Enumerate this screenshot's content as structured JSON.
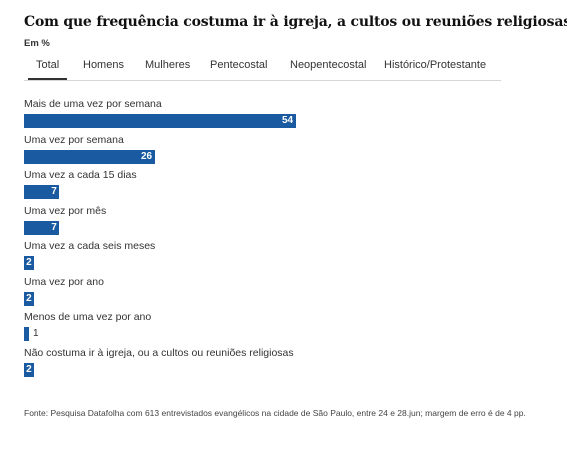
{
  "title": "Com que frequência costuma ir à igreja, a cultos ou reuniões religiosas",
  "subtitle": "Em %",
  "tabs": [
    "Total",
    "Homens",
    "Mulheres",
    "Pentecostal",
    "Neopentecostal",
    "Histórico/Protestante"
  ],
  "active_tab": "Total",
  "colors": {
    "bar": "#1a5aa0"
  },
  "chart_data": {
    "type": "bar",
    "orientation": "horizontal",
    "categories": [
      "Mais de uma vez por semana",
      "Uma vez por semana",
      "Uma vez a cada 15 dias",
      "Uma vez por mês",
      "Uma vez a cada seis meses",
      "Uma vez por ano",
      "Menos de uma vez por ano",
      "Não costuma ir à igreja, ou a cultos ou reuniões religiosas"
    ],
    "values": [
      54,
      26,
      7,
      7,
      2,
      2,
      1,
      2
    ],
    "xlim": [
      0,
      100
    ],
    "grid": false,
    "legend": "none"
  },
  "source": "Fonte: Pesquisa Datafolha com 613 entrevistados evangélicos na cidade de São Paulo, entre 24 e 28.jun; margem de erro é de 4 pp."
}
